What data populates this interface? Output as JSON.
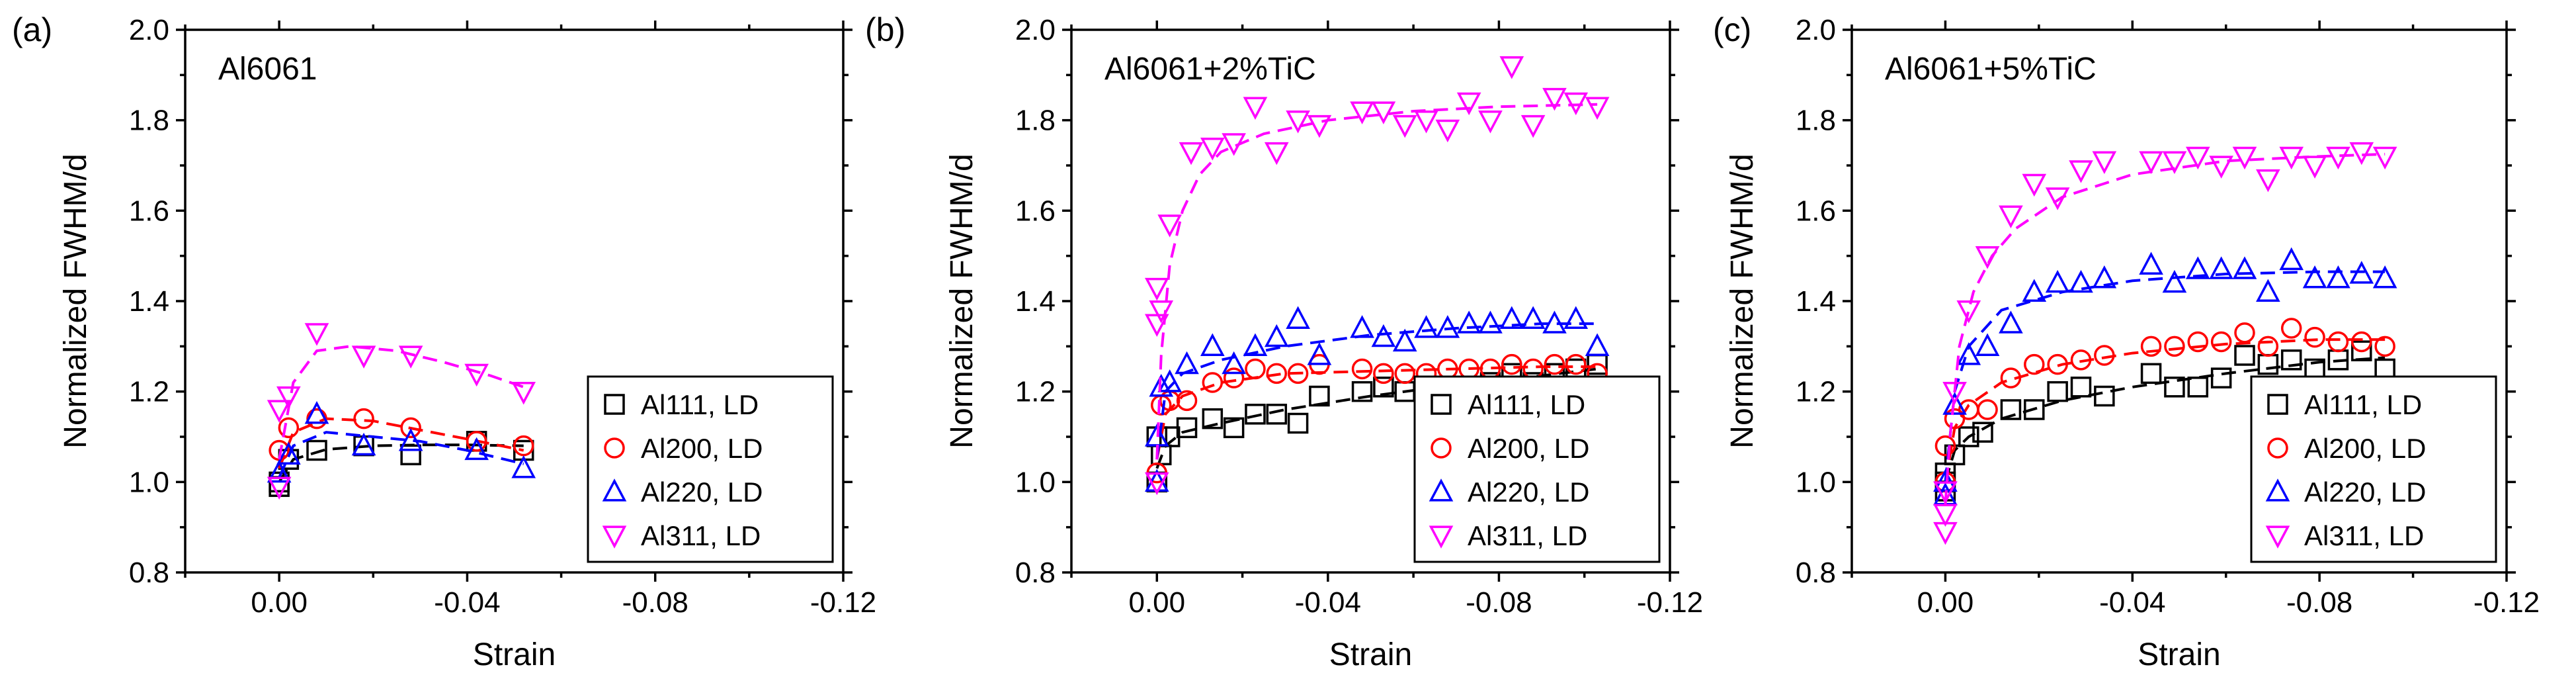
{
  "chart_data": [
    {
      "type": "scatter",
      "panel_label": "(a)",
      "title": "Al6061",
      "xlabel": "Strain",
      "ylabel": "Normalized FWHM/d",
      "xlim": [
        0.02,
        -0.12
      ],
      "ylim": [
        0.8,
        2.0
      ],
      "xticks": [
        "0.00",
        "-0.04",
        "-0.08",
        "-0.12"
      ],
      "yticks": [
        "0.8",
        "1.0",
        "1.2",
        "1.4",
        "1.6",
        "1.8",
        "2.0"
      ],
      "legend": [
        "Al111, LD",
        "Al200, LD",
        "Al220, LD",
        "Al311, LD"
      ],
      "series": [
        {
          "name": "Al111, LD",
          "color": "#000000",
          "marker": "square",
          "x": [
            0.0,
            0.0,
            -0.002,
            -0.008,
            -0.018,
            -0.028,
            -0.042,
            -0.052
          ],
          "y": [
            0.99,
            1.0,
            1.05,
            1.07,
            1.08,
            1.06,
            1.09,
            1.07
          ],
          "fit_x": [
            0.0,
            -0.003,
            -0.01,
            -0.02,
            -0.03,
            -0.04,
            -0.052
          ],
          "fit_y": [
            1.0,
            1.05,
            1.072,
            1.08,
            1.082,
            1.082,
            1.08
          ]
        },
        {
          "name": "Al200, LD",
          "color": "#ff0000",
          "marker": "circle",
          "x": [
            0.0,
            -0.002,
            -0.008,
            -0.018,
            -0.028,
            -0.042,
            -0.052
          ],
          "y": [
            1.07,
            1.12,
            1.14,
            1.14,
            1.12,
            1.09,
            1.08
          ],
          "fit_x": [
            0.0,
            -0.003,
            -0.01,
            -0.02,
            -0.03,
            -0.04,
            -0.052
          ],
          "fit_y": [
            1.03,
            1.11,
            1.14,
            1.135,
            1.115,
            1.095,
            1.07
          ]
        },
        {
          "name": "Al220, LD",
          "color": "#0000ff",
          "marker": "triangle-up",
          "x": [
            0.0,
            -0.002,
            -0.008,
            -0.018,
            -0.028,
            -0.042,
            -0.052
          ],
          "y": [
            1.02,
            1.06,
            1.15,
            1.08,
            1.09,
            1.07,
            1.03
          ],
          "fit_x": [
            0.0,
            -0.003,
            -0.01,
            -0.02,
            -0.03,
            -0.04,
            -0.052
          ],
          "fit_y": [
            1.01,
            1.08,
            1.11,
            1.1,
            1.09,
            1.07,
            1.04
          ]
        },
        {
          "name": "Al311, LD",
          "color": "#ff00ff",
          "marker": "triangle-down",
          "x": [
            0.0,
            0.0,
            -0.002,
            -0.008,
            -0.018,
            -0.028,
            -0.042,
            -0.052
          ],
          "y": [
            0.99,
            1.16,
            1.19,
            1.33,
            1.28,
            1.28,
            1.24,
            1.2
          ],
          "fit_x": [
            0.0,
            -0.003,
            -0.008,
            -0.015,
            -0.025,
            -0.035,
            -0.045,
            -0.052
          ],
          "fit_y": [
            1.05,
            1.22,
            1.29,
            1.3,
            1.29,
            1.265,
            1.235,
            1.21
          ]
        }
      ]
    },
    {
      "type": "scatter",
      "panel_label": "(b)",
      "title": "Al6061+2%TiC",
      "xlabel": "Strain",
      "ylabel": "Normalized FWHM/d",
      "xlim": [
        0.02,
        -0.12
      ],
      "ylim": [
        0.8,
        2.0
      ],
      "xticks": [
        "0.00",
        "-0.04",
        "-0.08",
        "-0.12"
      ],
      "yticks": [
        "0.8",
        "1.0",
        "1.2",
        "1.4",
        "1.6",
        "1.8",
        "2.0"
      ],
      "legend": [
        "Al111, LD",
        "Al200, LD",
        "Al220, LD",
        "Al311, LD"
      ],
      "series": [
        {
          "name": "Al111, LD",
          "color": "#000000",
          "marker": "square",
          "x": [
            0.0,
            0.0,
            -0.001,
            -0.003,
            -0.007,
            -0.013,
            -0.018,
            -0.023,
            -0.028,
            -0.033,
            -0.038,
            -0.048,
            -0.053,
            -0.058,
            -0.063,
            -0.068,
            -0.073,
            -0.078,
            -0.083,
            -0.088,
            -0.093,
            -0.098,
            -0.103
          ],
          "y": [
            1.0,
            1.1,
            1.06,
            1.1,
            1.12,
            1.14,
            1.12,
            1.15,
            1.15,
            1.13,
            1.19,
            1.2,
            1.21,
            1.2,
            1.17,
            1.21,
            1.21,
            1.22,
            1.24,
            1.22,
            1.24,
            1.25,
            1.26
          ],
          "fit_x": [
            0.0,
            -0.002,
            -0.006,
            -0.015,
            -0.03,
            -0.05,
            -0.07,
            -0.09,
            -0.103
          ],
          "fit_y": [
            1.03,
            1.08,
            1.11,
            1.13,
            1.16,
            1.19,
            1.215,
            1.235,
            1.25
          ]
        },
        {
          "name": "Al200, LD",
          "color": "#ff0000",
          "marker": "circle",
          "x": [
            0.0,
            -0.001,
            -0.003,
            -0.007,
            -0.013,
            -0.018,
            -0.023,
            -0.028,
            -0.033,
            -0.038,
            -0.048,
            -0.053,
            -0.058,
            -0.063,
            -0.068,
            -0.073,
            -0.078,
            -0.083,
            -0.088,
            -0.093,
            -0.098,
            -0.103
          ],
          "y": [
            1.02,
            1.17,
            1.18,
            1.18,
            1.22,
            1.23,
            1.25,
            1.24,
            1.24,
            1.26,
            1.25,
            1.24,
            1.24,
            1.24,
            1.25,
            1.25,
            1.25,
            1.26,
            1.25,
            1.26,
            1.26,
            1.24
          ],
          "fit_x": [
            0.0,
            -0.002,
            -0.006,
            -0.015,
            -0.03,
            -0.05,
            -0.07,
            -0.09,
            -0.103
          ],
          "fit_y": [
            1.05,
            1.15,
            1.19,
            1.22,
            1.24,
            1.245,
            1.25,
            1.255,
            1.255
          ]
        },
        {
          "name": "Al220, LD",
          "color": "#0000ff",
          "marker": "triangle-up",
          "x": [
            0.0,
            0.0,
            -0.001,
            -0.003,
            -0.007,
            -0.013,
            -0.018,
            -0.023,
            -0.028,
            -0.033,
            -0.038,
            -0.048,
            -0.053,
            -0.058,
            -0.063,
            -0.068,
            -0.073,
            -0.078,
            -0.083,
            -0.088,
            -0.093,
            -0.098,
            -0.103
          ],
          "y": [
            1.0,
            1.1,
            1.21,
            1.22,
            1.26,
            1.3,
            1.26,
            1.3,
            1.32,
            1.36,
            1.28,
            1.34,
            1.32,
            1.31,
            1.34,
            1.34,
            1.35,
            1.35,
            1.36,
            1.36,
            1.35,
            1.36,
            1.3
          ],
          "fit_x": [
            0.0,
            -0.002,
            -0.006,
            -0.015,
            -0.03,
            -0.05,
            -0.07,
            -0.09,
            -0.103
          ],
          "fit_y": [
            1.05,
            1.2,
            1.24,
            1.27,
            1.3,
            1.325,
            1.34,
            1.35,
            1.35
          ]
        },
        {
          "name": "Al311, LD",
          "color": "#ff00ff",
          "marker": "triangle-down",
          "x": [
            0.0,
            0.0,
            0.0,
            -0.001,
            -0.003,
            -0.008,
            -0.013,
            -0.018,
            -0.023,
            -0.028,
            -0.033,
            -0.038,
            -0.048,
            -0.053,
            -0.058,
            -0.063,
            -0.068,
            -0.073,
            -0.078,
            -0.083,
            -0.088,
            -0.093,
            -0.098,
            -0.103
          ],
          "y": [
            1.0,
            1.35,
            1.43,
            1.38,
            1.57,
            1.73,
            1.74,
            1.75,
            1.83,
            1.73,
            1.8,
            1.79,
            1.82,
            1.82,
            1.79,
            1.8,
            1.78,
            1.84,
            1.8,
            1.92,
            1.79,
            1.85,
            1.84,
            1.83
          ],
          "fit_x": [
            0.0,
            -0.001,
            -0.003,
            -0.006,
            -0.01,
            -0.015,
            -0.025,
            -0.04,
            -0.06,
            -0.08,
            -0.103
          ],
          "fit_y": [
            1.05,
            1.28,
            1.48,
            1.6,
            1.68,
            1.73,
            1.77,
            1.8,
            1.82,
            1.83,
            1.835
          ]
        }
      ]
    },
    {
      "type": "scatter",
      "panel_label": "(c)",
      "title": "Al6061+5%TiC",
      "xlabel": "Strain",
      "ylabel": "Normalized FWHM/d",
      "xlim": [
        0.02,
        -0.12
      ],
      "ylim": [
        0.8,
        2.0
      ],
      "xticks": [
        "0.00",
        "-0.04",
        "-0.08",
        "-0.12"
      ],
      "yticks": [
        "0.8",
        "1.0",
        "1.2",
        "1.4",
        "1.6",
        "1.8",
        "2.0"
      ],
      "legend": [
        "Al111, LD",
        "Al200, LD",
        "Al220, LD",
        "Al311, LD"
      ],
      "series": [
        {
          "name": "Al111, LD",
          "color": "#000000",
          "marker": "square",
          "x": [
            0.0,
            0.0,
            0.0,
            -0.002,
            -0.005,
            -0.008,
            -0.014,
            -0.019,
            -0.024,
            -0.029,
            -0.034,
            -0.044,
            -0.049,
            -0.054,
            -0.059,
            -0.064,
            -0.069,
            -0.074,
            -0.079,
            -0.084,
            -0.089,
            -0.094
          ],
          "y": [
            0.98,
            1.0,
            1.02,
            1.06,
            1.1,
            1.11,
            1.16,
            1.16,
            1.2,
            1.21,
            1.19,
            1.24,
            1.21,
            1.21,
            1.23,
            1.28,
            1.26,
            1.27,
            1.25,
            1.27,
            1.29,
            1.25
          ],
          "fit_x": [
            0.0,
            -0.002,
            -0.005,
            -0.012,
            -0.025,
            -0.04,
            -0.06,
            -0.08,
            -0.094
          ],
          "fit_y": [
            1.0,
            1.07,
            1.1,
            1.14,
            1.18,
            1.21,
            1.24,
            1.265,
            1.275
          ]
        },
        {
          "name": "Al200, LD",
          "color": "#ff0000",
          "marker": "circle",
          "x": [
            0.0,
            0.0,
            -0.002,
            -0.005,
            -0.009,
            -0.014,
            -0.019,
            -0.024,
            -0.029,
            -0.034,
            -0.044,
            -0.049,
            -0.054,
            -0.059,
            -0.064,
            -0.069,
            -0.074,
            -0.079,
            -0.084,
            -0.089,
            -0.094
          ],
          "y": [
            1.0,
            1.08,
            1.14,
            1.16,
            1.16,
            1.23,
            1.26,
            1.26,
            1.27,
            1.28,
            1.3,
            1.3,
            1.31,
            1.31,
            1.33,
            1.3,
            1.34,
            1.32,
            1.31,
            1.31,
            1.3
          ],
          "fit_x": [
            0.0,
            -0.002,
            -0.005,
            -0.012,
            -0.025,
            -0.04,
            -0.06,
            -0.08,
            -0.094
          ],
          "fit_y": [
            1.0,
            1.12,
            1.17,
            1.22,
            1.26,
            1.285,
            1.305,
            1.315,
            1.315
          ]
        },
        {
          "name": "Al220, LD",
          "color": "#0000ff",
          "marker": "triangle-up",
          "x": [
            0.0,
            0.0,
            -0.002,
            -0.005,
            -0.009,
            -0.014,
            -0.019,
            -0.024,
            -0.029,
            -0.034,
            -0.044,
            -0.049,
            -0.054,
            -0.059,
            -0.064,
            -0.069,
            -0.074,
            -0.079,
            -0.084,
            -0.089,
            -0.094
          ],
          "y": [
            0.97,
            1.0,
            1.17,
            1.28,
            1.3,
            1.35,
            1.42,
            1.44,
            1.44,
            1.45,
            1.48,
            1.44,
            1.47,
            1.47,
            1.47,
            1.42,
            1.49,
            1.45,
            1.45,
            1.46,
            1.45
          ],
          "fit_x": [
            0.0,
            -0.002,
            -0.005,
            -0.012,
            -0.025,
            -0.04,
            -0.06,
            -0.08,
            -0.094
          ],
          "fit_y": [
            1.0,
            1.2,
            1.3,
            1.38,
            1.42,
            1.445,
            1.46,
            1.465,
            1.465
          ]
        },
        {
          "name": "Al311, LD",
          "color": "#ff00ff",
          "marker": "triangle-down",
          "x": [
            0.0,
            0.0,
            0.0,
            -0.002,
            -0.005,
            -0.009,
            -0.014,
            -0.019,
            -0.024,
            -0.029,
            -0.034,
            -0.044,
            -0.049,
            -0.054,
            -0.059,
            -0.064,
            -0.069,
            -0.074,
            -0.079,
            -0.084,
            -0.089,
            -0.094
          ],
          "y": [
            0.89,
            0.93,
            0.98,
            1.2,
            1.38,
            1.5,
            1.59,
            1.66,
            1.63,
            1.69,
            1.71,
            1.71,
            1.71,
            1.72,
            1.7,
            1.72,
            1.67,
            1.72,
            1.7,
            1.72,
            1.73,
            1.72
          ],
          "fit_x": [
            0.0,
            -0.001,
            -0.003,
            -0.006,
            -0.01,
            -0.015,
            -0.025,
            -0.04,
            -0.06,
            -0.08,
            -0.094
          ],
          "fit_y": [
            0.95,
            1.1,
            1.3,
            1.42,
            1.5,
            1.56,
            1.63,
            1.68,
            1.71,
            1.72,
            1.725
          ]
        }
      ]
    }
  ]
}
